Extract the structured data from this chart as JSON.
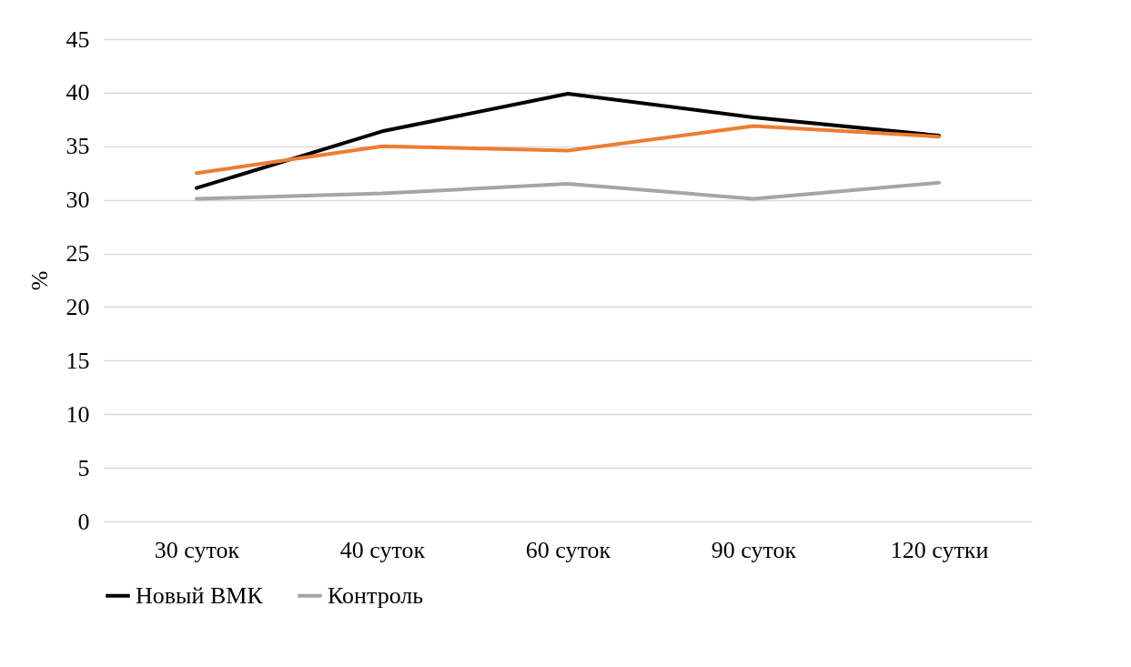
{
  "chart_data": {
    "type": "line",
    "ylabel": "%",
    "categories": [
      "30 суток",
      "40 суток",
      "60 суток",
      "90 суток",
      "120 сутки"
    ],
    "series": [
      {
        "name": "Новый ВМК",
        "color": "#000000",
        "values": [
          31.1,
          36.4,
          39.9,
          37.7,
          36.0
        ]
      },
      {
        "color": "#ed7d31",
        "values": [
          32.5,
          35.0,
          34.6,
          36.9,
          35.9
        ]
      },
      {
        "name": "Контроль",
        "color": "#a5a5a5",
        "values": [
          30.1,
          30.6,
          31.5,
          30.1,
          31.6
        ]
      }
    ],
    "ylim": [
      0,
      45
    ],
    "yticks": [
      0,
      5,
      10,
      15,
      20,
      25,
      30,
      35,
      40,
      45
    ],
    "grid": "y",
    "legend": "bottom",
    "marker": "none",
    "line_style": "solid"
  }
}
